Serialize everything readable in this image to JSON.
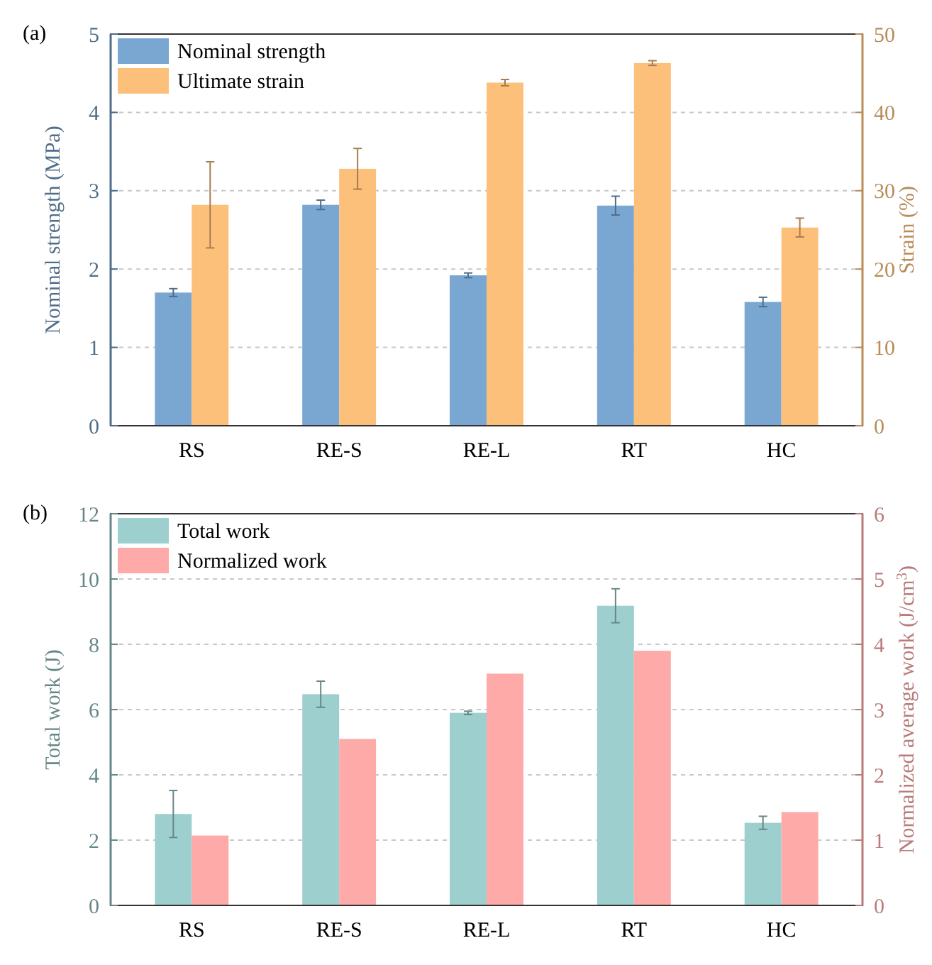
{
  "chart_data": [
    {
      "type": "bar",
      "title": "(a)",
      "categories": [
        "RS",
        "RE-S",
        "RE-L",
        "RT",
        "HC"
      ],
      "ylabel": "Nominal strength (MPa)",
      "y2label": "Strain (%)",
      "ylim": [
        0,
        5
      ],
      "yticks": [
        0,
        1,
        2,
        3,
        4,
        5
      ],
      "y2lim": [
        0,
        50
      ],
      "y2ticks": [
        0,
        10,
        20,
        30,
        40,
        50
      ],
      "grid": "y",
      "legend": "top left",
      "series": [
        {
          "name": "Nominal strength",
          "color": "#7aa7d2",
          "values": [
            1.7,
            2.82,
            1.92,
            2.81,
            1.58
          ],
          "errors": [
            0.05,
            0.06,
            0.03,
            0.12,
            0.06
          ]
        },
        {
          "name": "Ultimate strain",
          "color": "#fdc07a",
          "axis": "y2",
          "values": [
            28.2,
            32.8,
            43.8,
            46.3,
            25.3
          ],
          "errors": [
            5.5,
            2.6,
            0.4,
            0.3,
            1.2
          ]
        }
      ]
    },
    {
      "type": "bar",
      "title": "(b)",
      "categories": [
        "RS",
        "RE-S",
        "RE-L",
        "RT",
        "HC"
      ],
      "ylabel": "Total work (J)",
      "y2label": "Normalized average work (J/cm$^{3}$)",
      "ylim": [
        0,
        12
      ],
      "yticks": [
        0,
        2,
        4,
        6,
        8,
        10,
        12
      ],
      "y2lim": [
        0,
        6
      ],
      "y2ticks": [
        0,
        1,
        2,
        3,
        4,
        5,
        6
      ],
      "grid": "y",
      "legend": "top left",
      "series": [
        {
          "name": "Total work",
          "color": "#9ecfcf",
          "values": [
            2.8,
            6.47,
            5.9,
            9.18,
            2.53
          ],
          "errors": [
            0.72,
            0.4,
            0.05,
            0.52,
            0.2
          ]
        },
        {
          "name": "Normalized work",
          "color": "#fdaaa8",
          "axis": "y2",
          "values": [
            1.07,
            2.55,
            3.55,
            3.9,
            1.43
          ]
        }
      ]
    }
  ]
}
